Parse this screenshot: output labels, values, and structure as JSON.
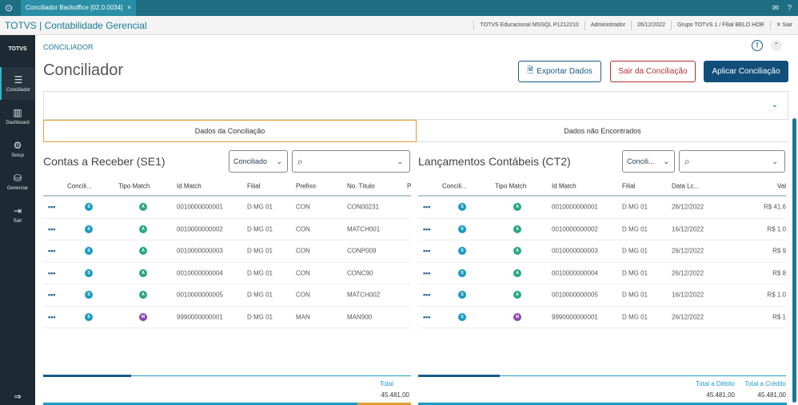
{
  "topbar": {
    "tab_label": "Conciliador Backoffice [02.0.0034]",
    "tab_close": "×"
  },
  "appbar": {
    "brand": "TOTVS | Contabilidade Gerencial",
    "info": [
      "TOTVS Educacional MSSQL P1212210",
      "Administrador",
      "26/12/2022",
      "Grupo TOTVS 1 / Filial BELO HOR"
    ],
    "close_label": "Sair"
  },
  "sidenav": {
    "logo": "TOTVS",
    "items": [
      {
        "label": "Conciliador",
        "icon": "list-icon"
      },
      {
        "label": "Dashboard",
        "icon": "chart-icon"
      },
      {
        "label": "Setup",
        "icon": "gear-icon"
      },
      {
        "label": "Gerenciar",
        "icon": "database-icon"
      },
      {
        "label": "Sair",
        "icon": "logout-icon"
      }
    ]
  },
  "header": {
    "breadcrumb": "CONCILIADOR",
    "title": "Conciliador",
    "export_label": "Exportar Dados",
    "exit_label": "Sair da Conciliação",
    "apply_label": "Aplicar Conciliação"
  },
  "tabs": [
    "Dados da Conciliação",
    "Dados não Encontrados"
  ],
  "left": {
    "title": "Contas a Receber (SE1)",
    "filter_value": "Conciliado",
    "search_placeholder": "",
    "headers": [
      "Concili...",
      "Tipo Match",
      "Id Match",
      "Filial",
      "Prefixo",
      "No. Título",
      "P"
    ],
    "rows": [
      {
        "st": "S",
        "tm": "A",
        "id": "0010000000001",
        "filial": "D MG 01",
        "prefixo": "CON",
        "titulo": "CON00231"
      },
      {
        "st": "S",
        "tm": "A",
        "id": "0010000000002",
        "filial": "D MG 01",
        "prefixo": "CON",
        "titulo": "MATCH001"
      },
      {
        "st": "S",
        "tm": "A",
        "id": "0010000000003",
        "filial": "D MG 01",
        "prefixo": "CON",
        "titulo": "CONP009"
      },
      {
        "st": "S",
        "tm": "A",
        "id": "0010000000004",
        "filial": "D MG 01",
        "prefixo": "CON",
        "titulo": "CONC90"
      },
      {
        "st": "S",
        "tm": "A",
        "id": "0010000000005",
        "filial": "D MG 01",
        "prefixo": "CON",
        "titulo": "MATCH002"
      },
      {
        "st": "S",
        "tm": "M",
        "id": "9990000000001",
        "filial": "D MG 01",
        "prefixo": "MAN",
        "titulo": "MAN900"
      }
    ],
    "total_label": "Total",
    "total_value": "45.481,00"
  },
  "right": {
    "title": "Lançamentos Contábeis (CT2)",
    "filter_value": "Concili...",
    "headers": [
      "Concili...",
      "Tipo Match",
      "Id Match",
      "Filial",
      "Data Lc...",
      "Val"
    ],
    "rows": [
      {
        "st": "S",
        "tm": "A",
        "id": "0010000000001",
        "filial": "D MG 01",
        "data": "26/12/2022",
        "val": "R$ 41.6"
      },
      {
        "st": "S",
        "tm": "A",
        "id": "0010000000002",
        "filial": "D MG 01",
        "data": "16/12/2022",
        "val": "R$ 1.0"
      },
      {
        "st": "S",
        "tm": "A",
        "id": "0010000000003",
        "filial": "D MG 01",
        "data": "26/12/2022",
        "val": "R$ 9"
      },
      {
        "st": "S",
        "tm": "A",
        "id": "0010000000004",
        "filial": "D MG 01",
        "data": "26/12/2022",
        "val": "R$ 8"
      },
      {
        "st": "S",
        "tm": "A",
        "id": "0010000000005",
        "filial": "D MG 01",
        "data": "16/12/2022",
        "val": "R$ 1.0"
      },
      {
        "st": "S",
        "tm": "M",
        "id": "9990000000001",
        "filial": "D MG 01",
        "data": "26/12/2022",
        "val": "R$ 1"
      }
    ],
    "debit_label": "Total a Débito",
    "debit_value": "45.481,00",
    "credit_label": "Total a Crédito",
    "credit_value": "45.481,00"
  }
}
